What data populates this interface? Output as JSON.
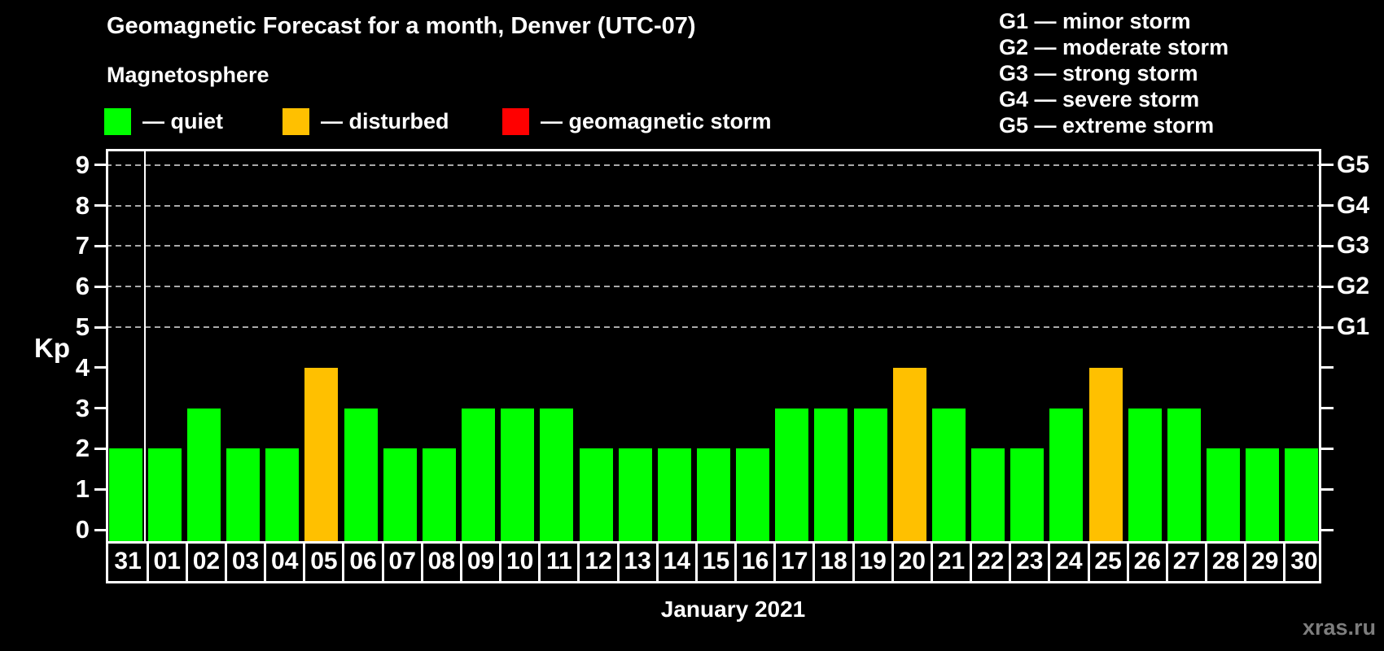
{
  "header": {
    "title": "Geomagnetic Forecast for a month, Denver (UTC-07)",
    "subtitle": "Magnetosphere"
  },
  "legend": {
    "items": [
      {
        "id": "quiet",
        "label": "— quiet",
        "color": "#00ff00"
      },
      {
        "id": "disturbed",
        "label": "— disturbed",
        "color": "#ffc000"
      },
      {
        "id": "storm",
        "label": "— geomagnetic storm",
        "color": "#ff0000"
      }
    ]
  },
  "g_scale_legend": {
    "items": [
      "G1 — minor storm",
      "G2 — moderate storm",
      "G3 — strong storm",
      "G4 — severe storm",
      "G5 — extreme storm"
    ]
  },
  "axes": {
    "kp_label": "Kp",
    "month_label": "January 2021"
  },
  "watermark": "xras.ru",
  "chart_data": {
    "type": "bar",
    "title": "Geomagnetic Forecast for a month, Denver (UTC-07)",
    "subtitle": "Magnetosphere",
    "ylabel": "Kp",
    "xlabel": "January 2021",
    "ylim": [
      0,
      9
    ],
    "y_ticks": [
      0,
      1,
      2,
      3,
      4,
      5,
      6,
      7,
      8,
      9
    ],
    "grid_levels": [
      5,
      6,
      7,
      8,
      9
    ],
    "grid_style": "dashed",
    "right_axis": [
      {
        "label": "G1",
        "kp": 5
      },
      {
        "label": "G2",
        "kp": 6
      },
      {
        "label": "G3",
        "kp": 7
      },
      {
        "label": "G4",
        "kp": 8
      },
      {
        "label": "G5",
        "kp": 9
      }
    ],
    "categories": [
      "31",
      "01",
      "02",
      "03",
      "04",
      "05",
      "06",
      "07",
      "08",
      "09",
      "10",
      "11",
      "12",
      "13",
      "14",
      "15",
      "16",
      "17",
      "18",
      "19",
      "20",
      "21",
      "22",
      "23",
      "24",
      "25",
      "26",
      "27",
      "28",
      "29",
      "30"
    ],
    "values": [
      2,
      2,
      3,
      2,
      2,
      4,
      3,
      2,
      2,
      3,
      3,
      3,
      2,
      2,
      2,
      2,
      2,
      3,
      3,
      3,
      4,
      3,
      2,
      2,
      3,
      4,
      3,
      3,
      2,
      2,
      2
    ],
    "statuses": [
      "quiet",
      "quiet",
      "quiet",
      "quiet",
      "quiet",
      "disturbed",
      "quiet",
      "quiet",
      "quiet",
      "quiet",
      "quiet",
      "quiet",
      "quiet",
      "quiet",
      "quiet",
      "quiet",
      "quiet",
      "quiet",
      "quiet",
      "quiet",
      "disturbed",
      "quiet",
      "quiet",
      "quiet",
      "quiet",
      "disturbed",
      "quiet",
      "quiet",
      "quiet",
      "quiet",
      "quiet"
    ],
    "colors": {
      "quiet": "#00ff00",
      "disturbed": "#ffc000",
      "storm": "#ff0000"
    },
    "month_boundary_index": 1,
    "legend_position": "top-left"
  }
}
